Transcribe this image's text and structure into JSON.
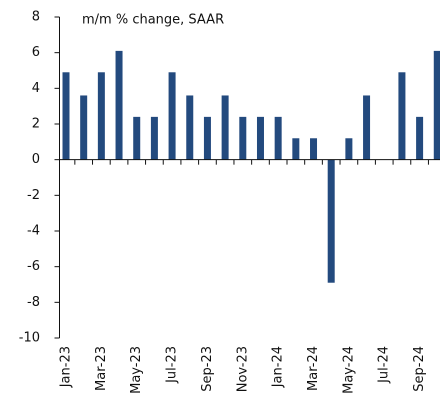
{
  "chart_data": {
    "type": "bar",
    "title": "m/m % change, SAAR",
    "categories": [
      "Jan-23",
      null,
      "Mar-23",
      null,
      "May-23",
      null,
      "Jul-23",
      null,
      "Sep-23",
      null,
      "Nov-23",
      null,
      "Jan-24",
      null,
      "Mar-24",
      null,
      "May-24",
      null,
      "Jul-24",
      null,
      "Sep-24",
      null
    ],
    "values": [
      4.9,
      3.6,
      4.9,
      6.1,
      2.4,
      2.4,
      4.9,
      3.6,
      2.4,
      3.6,
      2.4,
      2.4,
      2.4,
      1.2,
      1.2,
      -6.9,
      1.2,
      3.6,
      0,
      4.9,
      2.4,
      6.1
    ],
    "color": "#234a7e",
    "ylim": [
      -10,
      8
    ],
    "yticks": [
      -10,
      -8,
      -6,
      -4,
      -2,
      0,
      2,
      4,
      6,
      8
    ],
    "grid": false
  }
}
